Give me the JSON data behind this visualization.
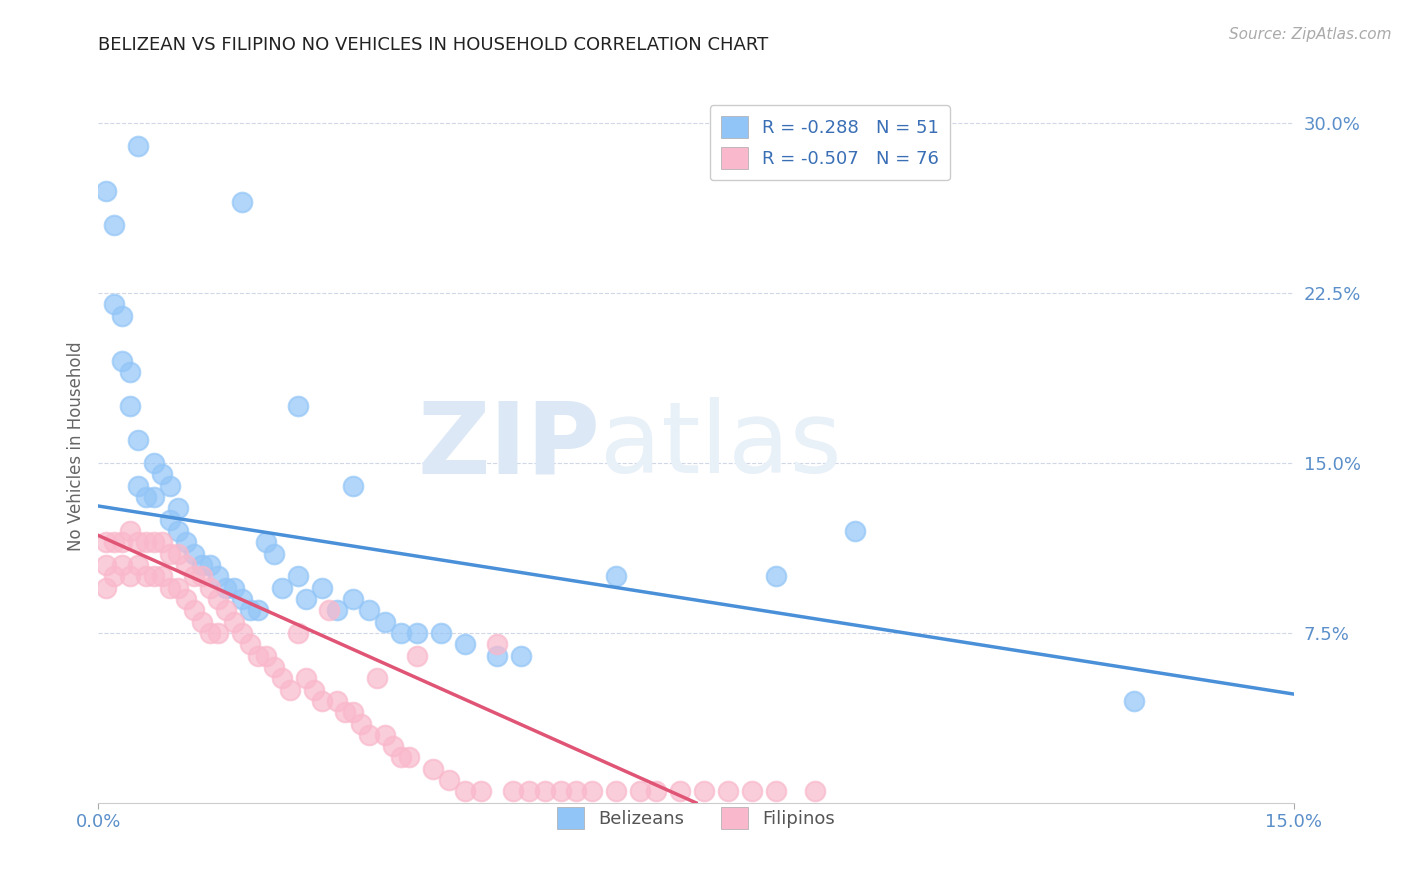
{
  "title": "BELIZEAN VS FILIPINO NO VEHICLES IN HOUSEHOLD CORRELATION CHART",
  "source": "Source: ZipAtlas.com",
  "ylabel": "No Vehicles in Household",
  "ytick_vals": [
    0.075,
    0.15,
    0.225,
    0.3
  ],
  "ytick_labels": [
    "7.5%",
    "15.0%",
    "22.5%",
    "30.0%"
  ],
  "xmin": 0.0,
  "xmax": 0.15,
  "ymin": 0.0,
  "ymax": 0.315,
  "belizean_color": "#92c5f7",
  "filipino_color": "#f9b8cb",
  "belizean_line_color": "#4a90d9",
  "filipino_line_color": "#e05575",
  "legend_text_color": "#3a6fb5",
  "watermark_zip": "ZIP",
  "watermark_atlas": "atlas",
  "R_belizean": -0.288,
  "N_belizean": 51,
  "R_filipino": -0.507,
  "N_filipino": 76,
  "bel_line_x0": 0.0,
  "bel_line_y0": 0.131,
  "bel_line_x1": 0.15,
  "bel_line_y1": 0.048,
  "fil_line_x0": 0.0,
  "fil_line_y0": 0.118,
  "fil_line_x1": 0.075,
  "fil_line_y1": 0.0,
  "belizean_pts_x": [
    0.001,
    0.002,
    0.002,
    0.003,
    0.003,
    0.004,
    0.004,
    0.005,
    0.005,
    0.006,
    0.007,
    0.007,
    0.008,
    0.009,
    0.009,
    0.01,
    0.01,
    0.011,
    0.012,
    0.013,
    0.014,
    0.015,
    0.016,
    0.017,
    0.018,
    0.019,
    0.02,
    0.021,
    0.022,
    0.023,
    0.025,
    0.026,
    0.028,
    0.03,
    0.032,
    0.034,
    0.036,
    0.038,
    0.04,
    0.043,
    0.046,
    0.05,
    0.053,
    0.032,
    0.025,
    0.018,
    0.065,
    0.085,
    0.095,
    0.13,
    0.005
  ],
  "belizean_pts_y": [
    0.27,
    0.255,
    0.22,
    0.215,
    0.195,
    0.19,
    0.175,
    0.16,
    0.14,
    0.135,
    0.135,
    0.15,
    0.145,
    0.14,
    0.125,
    0.13,
    0.12,
    0.115,
    0.11,
    0.105,
    0.105,
    0.1,
    0.095,
    0.095,
    0.09,
    0.085,
    0.085,
    0.115,
    0.11,
    0.095,
    0.1,
    0.09,
    0.095,
    0.085,
    0.09,
    0.085,
    0.08,
    0.075,
    0.075,
    0.075,
    0.07,
    0.065,
    0.065,
    0.14,
    0.175,
    0.265,
    0.1,
    0.1,
    0.12,
    0.045,
    0.29
  ],
  "filipino_pts_x": [
    0.001,
    0.001,
    0.001,
    0.002,
    0.002,
    0.003,
    0.003,
    0.004,
    0.004,
    0.005,
    0.005,
    0.006,
    0.006,
    0.007,
    0.007,
    0.008,
    0.008,
    0.009,
    0.009,
    0.01,
    0.01,
    0.011,
    0.011,
    0.012,
    0.012,
    0.013,
    0.013,
    0.014,
    0.014,
    0.015,
    0.015,
    0.016,
    0.017,
    0.018,
    0.019,
    0.02,
    0.021,
    0.022,
    0.023,
    0.024,
    0.025,
    0.026,
    0.027,
    0.028,
    0.029,
    0.03,
    0.031,
    0.032,
    0.033,
    0.034,
    0.035,
    0.036,
    0.037,
    0.038,
    0.039,
    0.04,
    0.042,
    0.044,
    0.046,
    0.048,
    0.05,
    0.052,
    0.054,
    0.056,
    0.058,
    0.06,
    0.062,
    0.065,
    0.068,
    0.07,
    0.073,
    0.076,
    0.079,
    0.082,
    0.085,
    0.09
  ],
  "filipino_pts_y": [
    0.115,
    0.105,
    0.095,
    0.115,
    0.1,
    0.115,
    0.105,
    0.12,
    0.1,
    0.115,
    0.105,
    0.115,
    0.1,
    0.115,
    0.1,
    0.115,
    0.1,
    0.11,
    0.095,
    0.11,
    0.095,
    0.105,
    0.09,
    0.1,
    0.085,
    0.1,
    0.08,
    0.095,
    0.075,
    0.09,
    0.075,
    0.085,
    0.08,
    0.075,
    0.07,
    0.065,
    0.065,
    0.06,
    0.055,
    0.05,
    0.075,
    0.055,
    0.05,
    0.045,
    0.085,
    0.045,
    0.04,
    0.04,
    0.035,
    0.03,
    0.055,
    0.03,
    0.025,
    0.02,
    0.02,
    0.065,
    0.015,
    0.01,
    0.005,
    0.005,
    0.07,
    0.005,
    0.005,
    0.005,
    0.005,
    0.005,
    0.005,
    0.005,
    0.005,
    0.005,
    0.005,
    0.005,
    0.005,
    0.005,
    0.005,
    0.005
  ]
}
